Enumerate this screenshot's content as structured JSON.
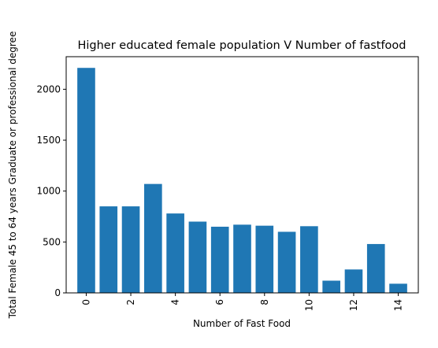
{
  "chart_data": {
    "type": "bar",
    "title": "Higher educated female population V Number of fastfood",
    "xlabel": "Number of Fast Food",
    "ylabel": "Total Female 45 to 64 years Graduate or professional degree",
    "x": [
      0,
      1,
      2,
      3,
      4,
      5,
      6,
      7,
      8,
      9,
      10,
      11,
      12,
      13,
      14
    ],
    "values": [
      2210,
      850,
      850,
      1070,
      780,
      700,
      650,
      670,
      660,
      600,
      655,
      120,
      230,
      480,
      90
    ],
    "xticks": [
      0,
      2,
      4,
      6,
      8,
      10,
      12,
      14
    ],
    "yticks": [
      0,
      500,
      1000,
      1500,
      2000
    ],
    "xlim": [
      -0.9,
      14.9
    ],
    "ylim": [
      0,
      2320
    ],
    "bar_width": 0.8,
    "bar_color": "#1f77b4",
    "grid": false,
    "xtick_rotation": 90
  }
}
